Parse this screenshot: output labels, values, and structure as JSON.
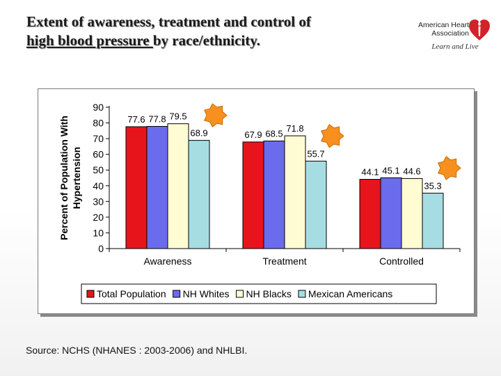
{
  "slide": {
    "title_line1": "Extent of awareness, treatment and control of",
    "title_line2_underlined": "high blood pressure ",
    "title_line2_rest": "by race/ethnicity.",
    "source": "Source: NCHS (NHANES : 2003-2006) and NHLBI."
  },
  "logo": {
    "org_line1": "American Heart",
    "org_line2": "Association",
    "tagline": "Learn and Live",
    "icon": "heart-torch-icon",
    "color": "#d2232a"
  },
  "chart_data": {
    "type": "bar",
    "categories": [
      "Awareness",
      "Treatment",
      "Controlled"
    ],
    "series": [
      {
        "name": "Total Population",
        "values": [
          77.6,
          67.9,
          44.1
        ],
        "color": "#e8141c"
      },
      {
        "name": "NH Whites",
        "values": [
          77.8,
          68.5,
          45.1
        ],
        "color": "#6b6bee"
      },
      {
        "name": "NH Blacks",
        "values": [
          79.5,
          71.8,
          44.6
        ],
        "color": "#fffbd2"
      },
      {
        "name": "Mexican Americans",
        "values": [
          68.9,
          55.7,
          35.3
        ],
        "color": "#a6dde3"
      }
    ],
    "ylabel": "Percent of Population With Hypertension",
    "ylim": [
      0,
      90
    ],
    "yticks": [
      0,
      10,
      20,
      30,
      40,
      50,
      60,
      70,
      80,
      90
    ],
    "legend_position": "bottom",
    "grid": false,
    "annotation_icon": "orange-star-burst-icon",
    "annotation_color": "#f7901e"
  }
}
